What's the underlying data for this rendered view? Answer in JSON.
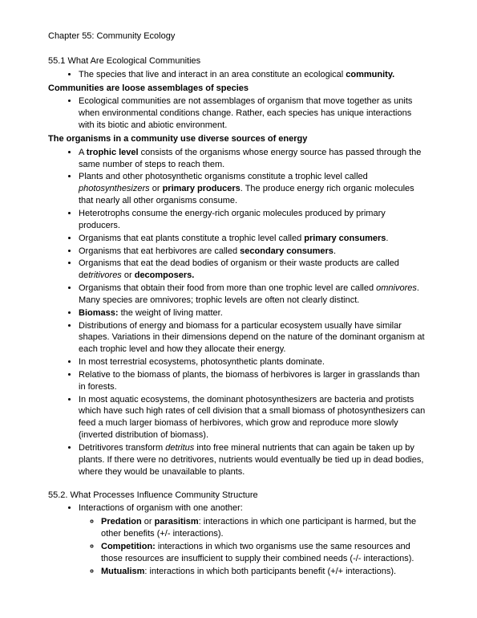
{
  "chapter_title": "Chapter 55: Community Ecology",
  "section1": {
    "heading": "55.1 What Are Ecological Communities",
    "intro": [
      "The species that live and interact in an area constitute an ecological <b>community.</b>"
    ],
    "sub1_heading": "Communities are loose assemblages of species",
    "sub1_items": [
      "Ecological communities are not assemblages of organism that move together as units when environmental conditions change. Rather, each species has unique interactions with its biotic and abiotic environment."
    ],
    "sub2_heading": "The organisms in a community use diverse sources of energy",
    "sub2_items": [
      "A <b>trophic level</b> consists of the organisms whose energy source has passed through the same number of steps to reach them.",
      " Plants and other photosynthetic organisms constitute a trophic level called <i>photosynthesizers</i> or <b>primary producers</b>. The produce energy rich organic molecules that nearly all other organisms consume.",
      "Heterotrophs consume the energy-rich organic molecules produced by primary producers.",
      "Organisms that eat plants constitute a trophic level called <b>primary consumers</b>.",
      "Organisms that eat herbivores are called <b>secondary consumers</b>.",
      "Organisms that eat the dead bodies of organism or their waste products are called de<i>tritivores</i> or <b>decomposers.</b>",
      "Organisms that obtain their food from more than one trophic level are called <i>omnivores</i>. Many species are omnivores; trophic levels are often not clearly distinct.",
      "<b>Biomass:</b> the weight of living matter.",
      "Distributions of energy and biomass for a particular ecosystem usually have similar shapes. Variations in their dimensions depend on the nature of the dominant organism at each trophic level and how they allocate their energy.",
      "In most terrestrial ecosystems, photosynthetic plants dominate.",
      "Relative to the biomass of plants, the biomass of herbivores is larger in grasslands than in forests.",
      "In most aquatic ecosystems, the dominant photosynthesizers are bacteria and protists which have such high rates of cell division that a small biomass of photosynthesizers can feed a much larger biomass of herbivores, which grow and reproduce more slowly (inverted distribution of biomass).",
      "Detritivores transform <i>detritus</i> into free mineral nutrients that can again be taken up by plants. If there were no detritivores, nutrients would eventually be tied up in dead bodies, where they would be unavailable to plants."
    ]
  },
  "section2": {
    "heading": "55.2. What Processes Influence Community Structure",
    "intro": [
      "Interactions of organism with one another:"
    ],
    "subitems": [
      "<b>Predation</b> or <b>parasitism</b>: interactions in which one participant is harmed, but the other benefits (+/- interactions).",
      "<b>Competition:</b> interactions in which two organisms use the same resources and those resources are insufficient to supply their combined needs (-/- interactions).",
      "<b>Mutualism</b>: interactions in which both participants benefit (+/+ interactions)."
    ]
  }
}
